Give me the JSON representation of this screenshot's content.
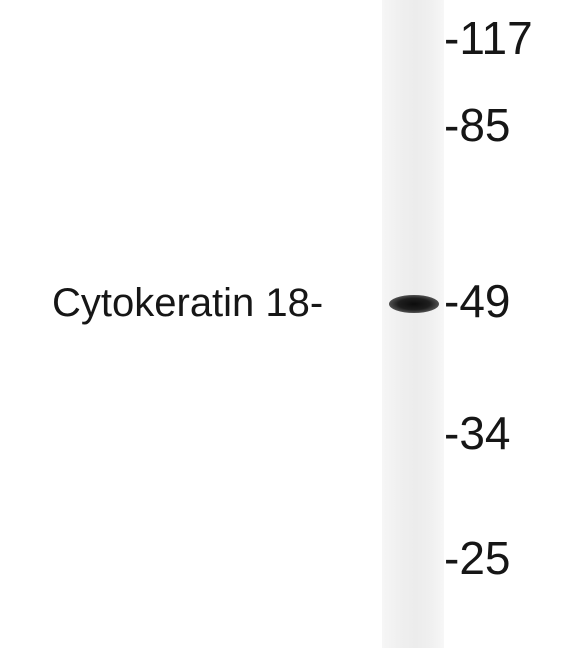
{
  "figure": {
    "protein_label": "Cytokeratin 18-",
    "markers": [
      {
        "label": "-117"
      },
      {
        "label": "-85"
      },
      {
        "label": "-49"
      },
      {
        "label": "-34"
      },
      {
        "label": "-25"
      }
    ],
    "colors": {
      "text": "#161616",
      "lane": "#efefef",
      "band": "#111111",
      "background": "#ffffff"
    }
  }
}
